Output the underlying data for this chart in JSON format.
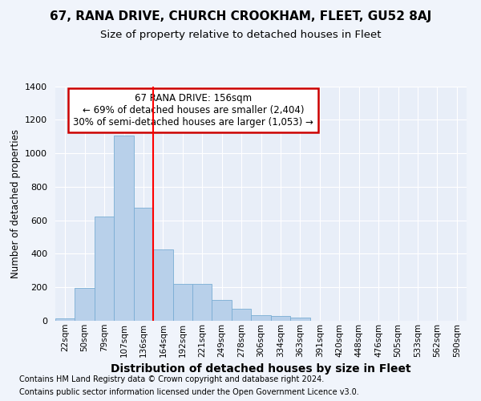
{
  "title": "67, RANA DRIVE, CHURCH CROOKHAM, FLEET, GU52 8AJ",
  "subtitle": "Size of property relative to detached houses in Fleet",
  "xlabel": "Distribution of detached houses by size in Fleet",
  "ylabel": "Number of detached properties",
  "footer_line1": "Contains HM Land Registry data © Crown copyright and database right 2024.",
  "footer_line2": "Contains public sector information licensed under the Open Government Licence v3.0.",
  "annotation_line1": "67 RANA DRIVE: 156sqm",
  "annotation_line2": "← 69% of detached houses are smaller (2,404)",
  "annotation_line3": "30% of semi-detached houses are larger (1,053) →",
  "bar_color": "#b8d0ea",
  "bar_edge_color": "#7aadd4",
  "vline_color": "red",
  "categories": [
    "22sqm",
    "50sqm",
    "79sqm",
    "107sqm",
    "136sqm",
    "164sqm",
    "192sqm",
    "221sqm",
    "249sqm",
    "278sqm",
    "306sqm",
    "334sqm",
    "363sqm",
    "391sqm",
    "420sqm",
    "448sqm",
    "476sqm",
    "505sqm",
    "533sqm",
    "562sqm",
    "590sqm"
  ],
  "values": [
    15,
    195,
    620,
    1105,
    675,
    425,
    220,
    220,
    125,
    70,
    35,
    30,
    20,
    0,
    0,
    0,
    0,
    0,
    0,
    0,
    0
  ],
  "ylim": [
    0,
    1400
  ],
  "yticks": [
    0,
    200,
    400,
    600,
    800,
    1000,
    1200,
    1400
  ],
  "vline_position": 4.5,
  "background_color": "#f0f4fb",
  "plot_bg_color": "#e8eef8",
  "grid_color": "#ffffff",
  "title_fontsize": 11,
  "subtitle_fontsize": 9.5,
  "xlabel_fontsize": 10,
  "ylabel_fontsize": 8.5,
  "tick_fontsize": 8,
  "xtick_fontsize": 7.5,
  "footer_fontsize": 7,
  "annotation_fontsize": 8.5,
  "annotation_box_color": "#ffffff",
  "annotation_box_edge": "#cc0000"
}
